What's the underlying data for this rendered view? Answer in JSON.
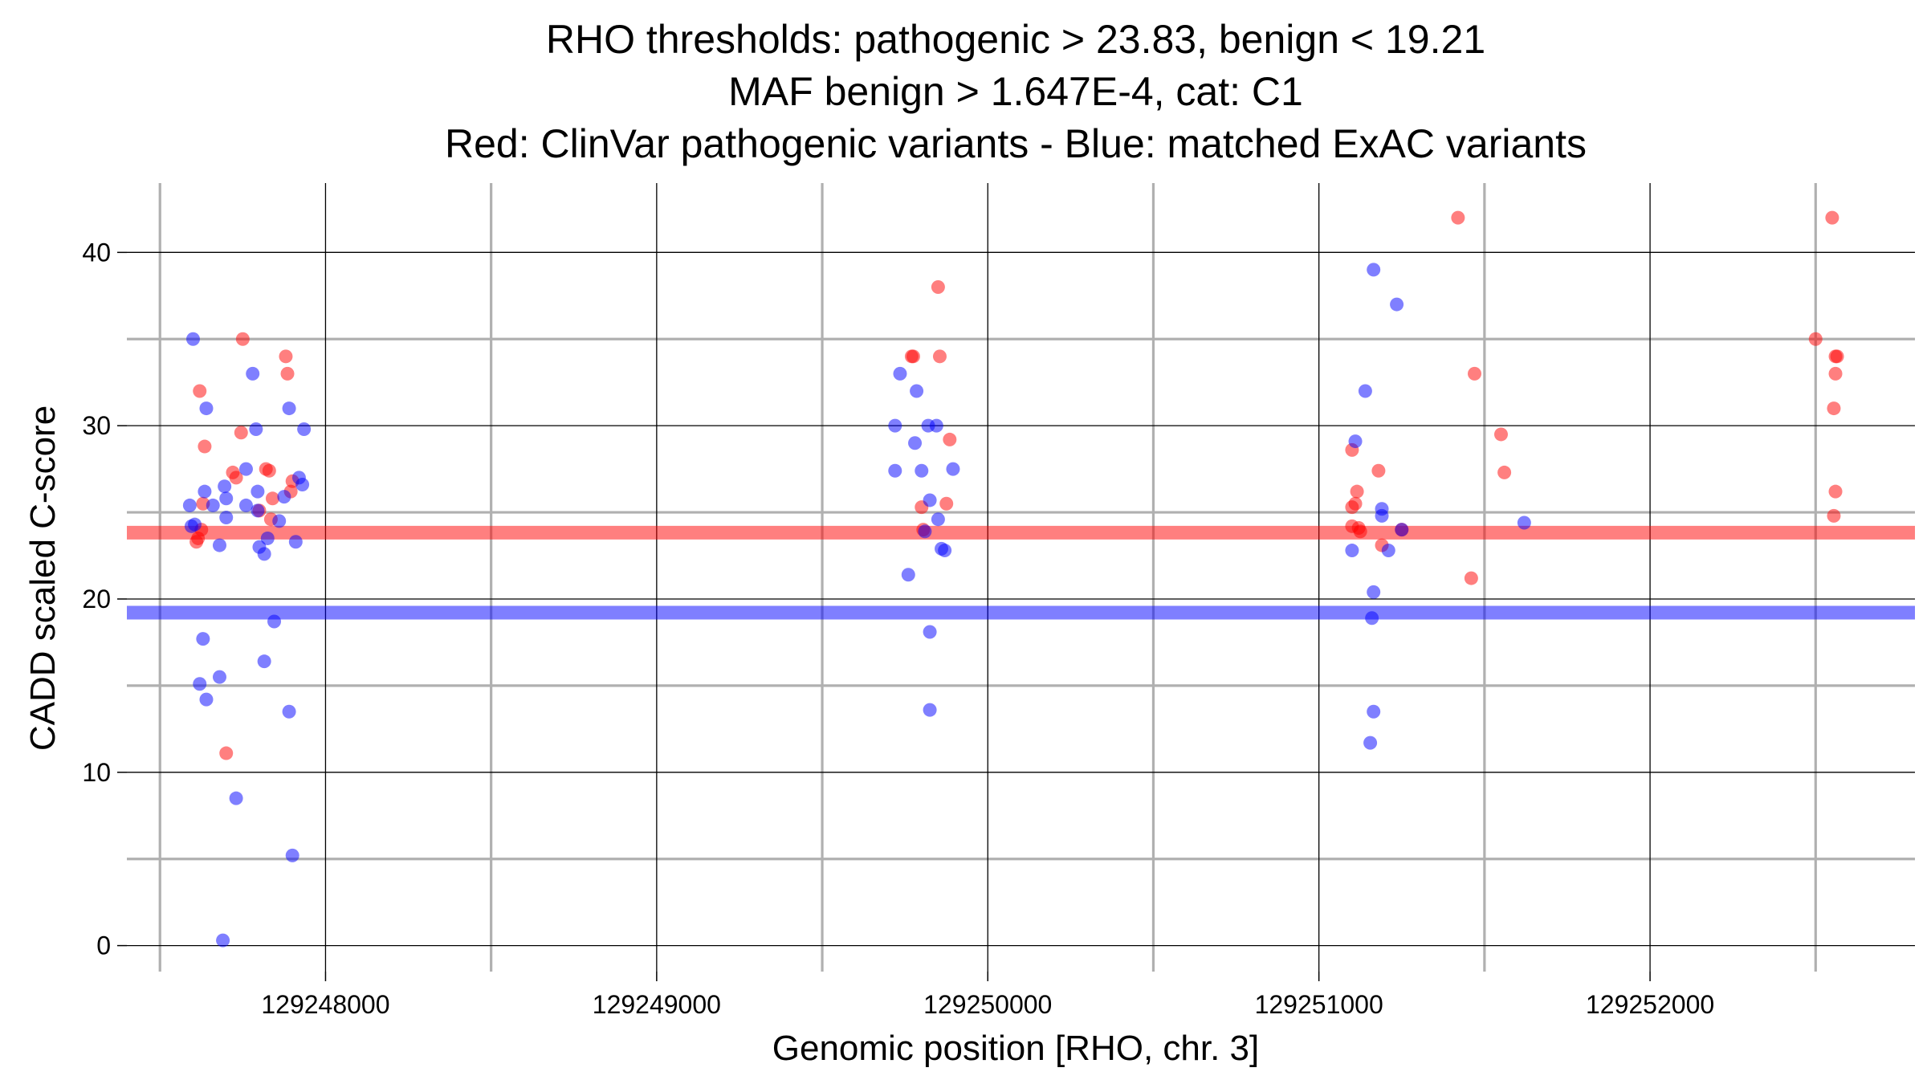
{
  "chart_data": {
    "type": "scatter",
    "title_lines": [
      "RHO thresholds: pathogenic > 23.83, benign < 19.21",
      "MAF benign > 1.647E-4, cat: C1",
      "Red: ClinVar pathogenic variants - Blue: matched ExAC variants"
    ],
    "xlabel": "Genomic position [RHO, chr. 3]",
    "ylabel": "CADD scaled C-score",
    "xlim": [
      129247400,
      129252800
    ],
    "ylim": [
      -1.5,
      44
    ],
    "x_ticks": [
      129248000,
      129249000,
      129250000,
      129251000,
      129252000
    ],
    "x_tick_labels": [
      "129248000",
      "129249000",
      "129250000",
      "129251000",
      "129252000"
    ],
    "x_minor_ticks": [
      129247500,
      129248500,
      129249500,
      129250500,
      129251500,
      129252500
    ],
    "y_ticks": [
      0,
      10,
      20,
      30,
      40
    ],
    "y_tick_labels": [
      "0",
      "10",
      "20",
      "30",
      "40"
    ],
    "y_minor_ticks": [
      5,
      15,
      25,
      35
    ],
    "grid": true,
    "thresholds": [
      {
        "value": 23.83,
        "color": "#ff0000"
      },
      {
        "value": 19.21,
        "color": "#0000ff"
      }
    ],
    "series": [
      {
        "color": "#ff0000",
        "points": [
          [
            129247620,
            32
          ],
          [
            129247635,
            28.8
          ],
          [
            129247630,
            25.5
          ],
          [
            129247625,
            24
          ],
          [
            129247615,
            23.5
          ],
          [
            129247610,
            23.3
          ],
          [
            129247700,
            11.1
          ],
          [
            129247720,
            27.3
          ],
          [
            129247730,
            27
          ],
          [
            129247745,
            29.6
          ],
          [
            129247750,
            35
          ],
          [
            129247800,
            25.1
          ],
          [
            129247820,
            27.5
          ],
          [
            129247830,
            27.4
          ],
          [
            129247835,
            24.6
          ],
          [
            129247840,
            25.8
          ],
          [
            129247880,
            34
          ],
          [
            129247885,
            33
          ],
          [
            129247895,
            26.2
          ],
          [
            129247900,
            26.8
          ],
          [
            129249770,
            34
          ],
          [
            129249775,
            34
          ],
          [
            129249800,
            25.3
          ],
          [
            129249805,
            24
          ],
          [
            129249850,
            38
          ],
          [
            129249855,
            34
          ],
          [
            129249875,
            25.5
          ],
          [
            129249885,
            29.2
          ],
          [
            129251100,
            28.6
          ],
          [
            129251100,
            25.3
          ],
          [
            129251110,
            25.5
          ],
          [
            129251100,
            24.2
          ],
          [
            129251115,
            26.2
          ],
          [
            129251120,
            24.1
          ],
          [
            129251125,
            23.9
          ],
          [
            129251180,
            27.4
          ],
          [
            129251190,
            23.1
          ],
          [
            129251250,
            24
          ],
          [
            129251420,
            42
          ],
          [
            129251470,
            33
          ],
          [
            129251460,
            21.2
          ],
          [
            129251550,
            29.5
          ],
          [
            129251560,
            27.3
          ],
          [
            129252500,
            35
          ],
          [
            129252550,
            42
          ],
          [
            129252560,
            34
          ],
          [
            129252565,
            34
          ],
          [
            129252560,
            33
          ],
          [
            129252555,
            31
          ],
          [
            129252560,
            26.2
          ],
          [
            129252555,
            24.8
          ]
        ]
      },
      {
        "color": "#0000ff",
        "points": [
          [
            129247590,
            25.4
          ],
          [
            129247595,
            24.2
          ],
          [
            129247600,
            35
          ],
          [
            129247605,
            24.3
          ],
          [
            129247620,
            15.1
          ],
          [
            129247630,
            17.7
          ],
          [
            129247640,
            14.2
          ],
          [
            129247640,
            31
          ],
          [
            129247635,
            26.2
          ],
          [
            129247660,
            25.4
          ],
          [
            129247680,
            23.1
          ],
          [
            129247680,
            15.5
          ],
          [
            129247690,
            0.3
          ],
          [
            129247695,
            26.5
          ],
          [
            129247700,
            25.8
          ],
          [
            129247700,
            24.7
          ],
          [
            129247730,
            8.5
          ],
          [
            129247760,
            27.5
          ],
          [
            129247760,
            25.4
          ],
          [
            129247780,
            33
          ],
          [
            129247790,
            29.8
          ],
          [
            129247795,
            26.2
          ],
          [
            129247795,
            25.1
          ],
          [
            129247800,
            23
          ],
          [
            129247815,
            22.6
          ],
          [
            129247815,
            16.4
          ],
          [
            129247825,
            23.5
          ],
          [
            129247845,
            18.7
          ],
          [
            129247860,
            24.5
          ],
          [
            129247875,
            25.9
          ],
          [
            129247890,
            31
          ],
          [
            129247890,
            13.5
          ],
          [
            129247900,
            5.2
          ],
          [
            129247910,
            23.3
          ],
          [
            129247920,
            27
          ],
          [
            129247930,
            26.6
          ],
          [
            129247935,
            29.8
          ],
          [
            129249720,
            27.4
          ],
          [
            129249720,
            30
          ],
          [
            129249735,
            33
          ],
          [
            129249760,
            21.4
          ],
          [
            129249780,
            29
          ],
          [
            129249785,
            32
          ],
          [
            129249800,
            27.4
          ],
          [
            129249810,
            23.9
          ],
          [
            129249820,
            30
          ],
          [
            129249825,
            25.7
          ],
          [
            129249825,
            18.1
          ],
          [
            129249825,
            13.6
          ],
          [
            129249845,
            30
          ],
          [
            129249850,
            24.6
          ],
          [
            129249860,
            22.9
          ],
          [
            129249870,
            22.8
          ],
          [
            129249895,
            27.5
          ],
          [
            129251100,
            22.8
          ],
          [
            129251110,
            29.1
          ],
          [
            129251140,
            32
          ],
          [
            129251165,
            20.4
          ],
          [
            129251160,
            18.9
          ],
          [
            129251165,
            13.5
          ],
          [
            129251155,
            11.7
          ],
          [
            129251165,
            39
          ],
          [
            129251190,
            25.2
          ],
          [
            129251190,
            24.8
          ],
          [
            129251210,
            22.8
          ],
          [
            129251235,
            37
          ],
          [
            129251250,
            24
          ],
          [
            129251620,
            24.4
          ]
        ]
      }
    ]
  }
}
